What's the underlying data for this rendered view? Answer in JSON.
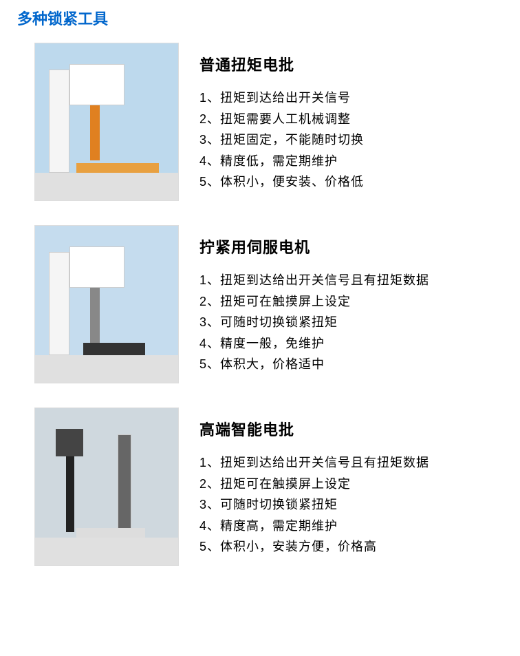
{
  "page_title": "多种锁紧工具",
  "sections": [
    {
      "title": "普通扭矩电批",
      "features": [
        "1、扭矩到达给出开关信号",
        "2、扭矩需要人工机械调整",
        "3、扭矩固定，不能随时切换",
        "4、精度低，需定期维护",
        "5、体积小，便安装、价格低"
      ]
    },
    {
      "title": "拧紧用伺服电机",
      "features": [
        "1、扭矩到达给出开关信号且有扭矩数据",
        "2、扭矩可在触摸屏上设定",
        "3、可随时切换锁紧扭矩",
        "4、精度一般，免维护",
        "5、体积大，价格适中"
      ]
    },
    {
      "title": "高端智能电批",
      "features": [
        "1、扭矩到达给出开关信号且有扭矩数据",
        "2、扭矩可在触摸屏上设定",
        "3、可随时切换锁紧扭矩",
        "4、精度高，需定期维护",
        "5、体积小，安装方便，价格高"
      ]
    }
  ],
  "colors": {
    "title_color": "#0066cc",
    "text_color": "#000000",
    "background": "#ffffff"
  },
  "typography": {
    "title_fontsize": 22,
    "section_title_fontsize": 22,
    "body_fontsize": 18
  }
}
